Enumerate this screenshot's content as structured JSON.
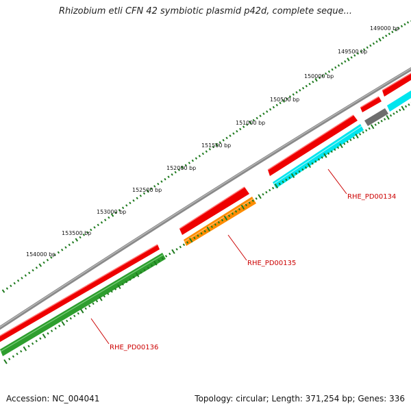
{
  "title": "Rhizobium etli CFN 42 symbiotic plasmid p42d, complete seque...",
  "accession": "Accession: NC_004041",
  "summary": "Topology: circular; Length: 371,254 bp; Genes: 336",
  "ruler": {
    "labels": [
      "149000 bp",
      "149500 bp",
      "150000 bp",
      "150500 bp",
      "151000 bp",
      "151500 bp",
      "152000 bp",
      "152500 bp",
      "153000 bp",
      "153500 bp",
      "154000 bp"
    ]
  },
  "genes": [
    {
      "label": "RHE_PD00134"
    },
    {
      "label": "RHE_PD00135"
    },
    {
      "label": "RHE_PD00136"
    }
  ],
  "colors": {
    "backbone": "#888888",
    "cds_forward": "#ee0000",
    "cds_reverse_blue": "#00e5ee",
    "cds_reverse_orange": "#ff8c00",
    "cds_reverse_green": "#2e9e2e",
    "gray_feature": "#6e6e6e",
    "ticks": "#1e7a1e",
    "gene_label": "#cc0000"
  }
}
